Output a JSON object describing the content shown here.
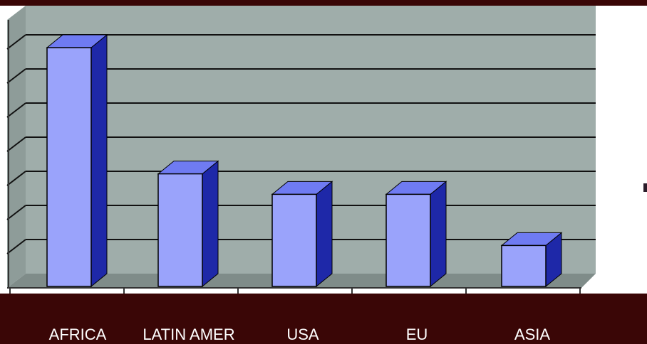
{
  "chart_data": {
    "type": "bar",
    "style": "3d-column",
    "categories": [
      "AFRICA",
      "LATIN AMER",
      "USA",
      "EU",
      "ASIA"
    ],
    "values": [
      7.0,
      3.3,
      2.7,
      2.7,
      1.2
    ],
    "ylim": [
      0,
      8
    ],
    "grid": true,
    "colors": {
      "bar_front": "#9aa3fb",
      "bar_side": "#1e28a8",
      "bar_top": "#6f7bf2",
      "plot_background": "#9fadaa",
      "plot_floor": "#7f8c89",
      "page_background": "#3a0606"
    }
  }
}
